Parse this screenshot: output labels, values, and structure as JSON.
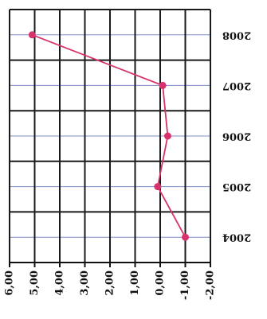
{
  "chart_data": {
    "type": "line",
    "title": "",
    "xlabel": "",
    "ylabel": "",
    "x_tick_labels": [
      "6,00",
      "5,00",
      "4,00",
      "3,00",
      "2,00",
      "1,00",
      "0,00",
      "-1,00",
      "-2,00"
    ],
    "x_ticks": [
      6,
      5,
      4,
      3,
      2,
      1,
      0,
      -1,
      -2
    ],
    "xlim": [
      6,
      -2
    ],
    "x_reversed": true,
    "y_tick_labels": [
      "2008",
      "2007",
      "2006",
      "2005",
      "2004"
    ],
    "grid": true,
    "legend": "none",
    "series": [
      {
        "categories": [
          "2004",
          "2005",
          "2006",
          "2007",
          "2008"
        ],
        "values": [
          -1.0,
          0.1,
          -0.3,
          -0.1,
          5.1
        ]
      }
    ]
  },
  "colors": {
    "line": "#d6336c",
    "marker": "#d6336c",
    "grid_major": "#1a1a1a",
    "grid_minor": "#7f8cc4",
    "axis": "#111111"
  }
}
